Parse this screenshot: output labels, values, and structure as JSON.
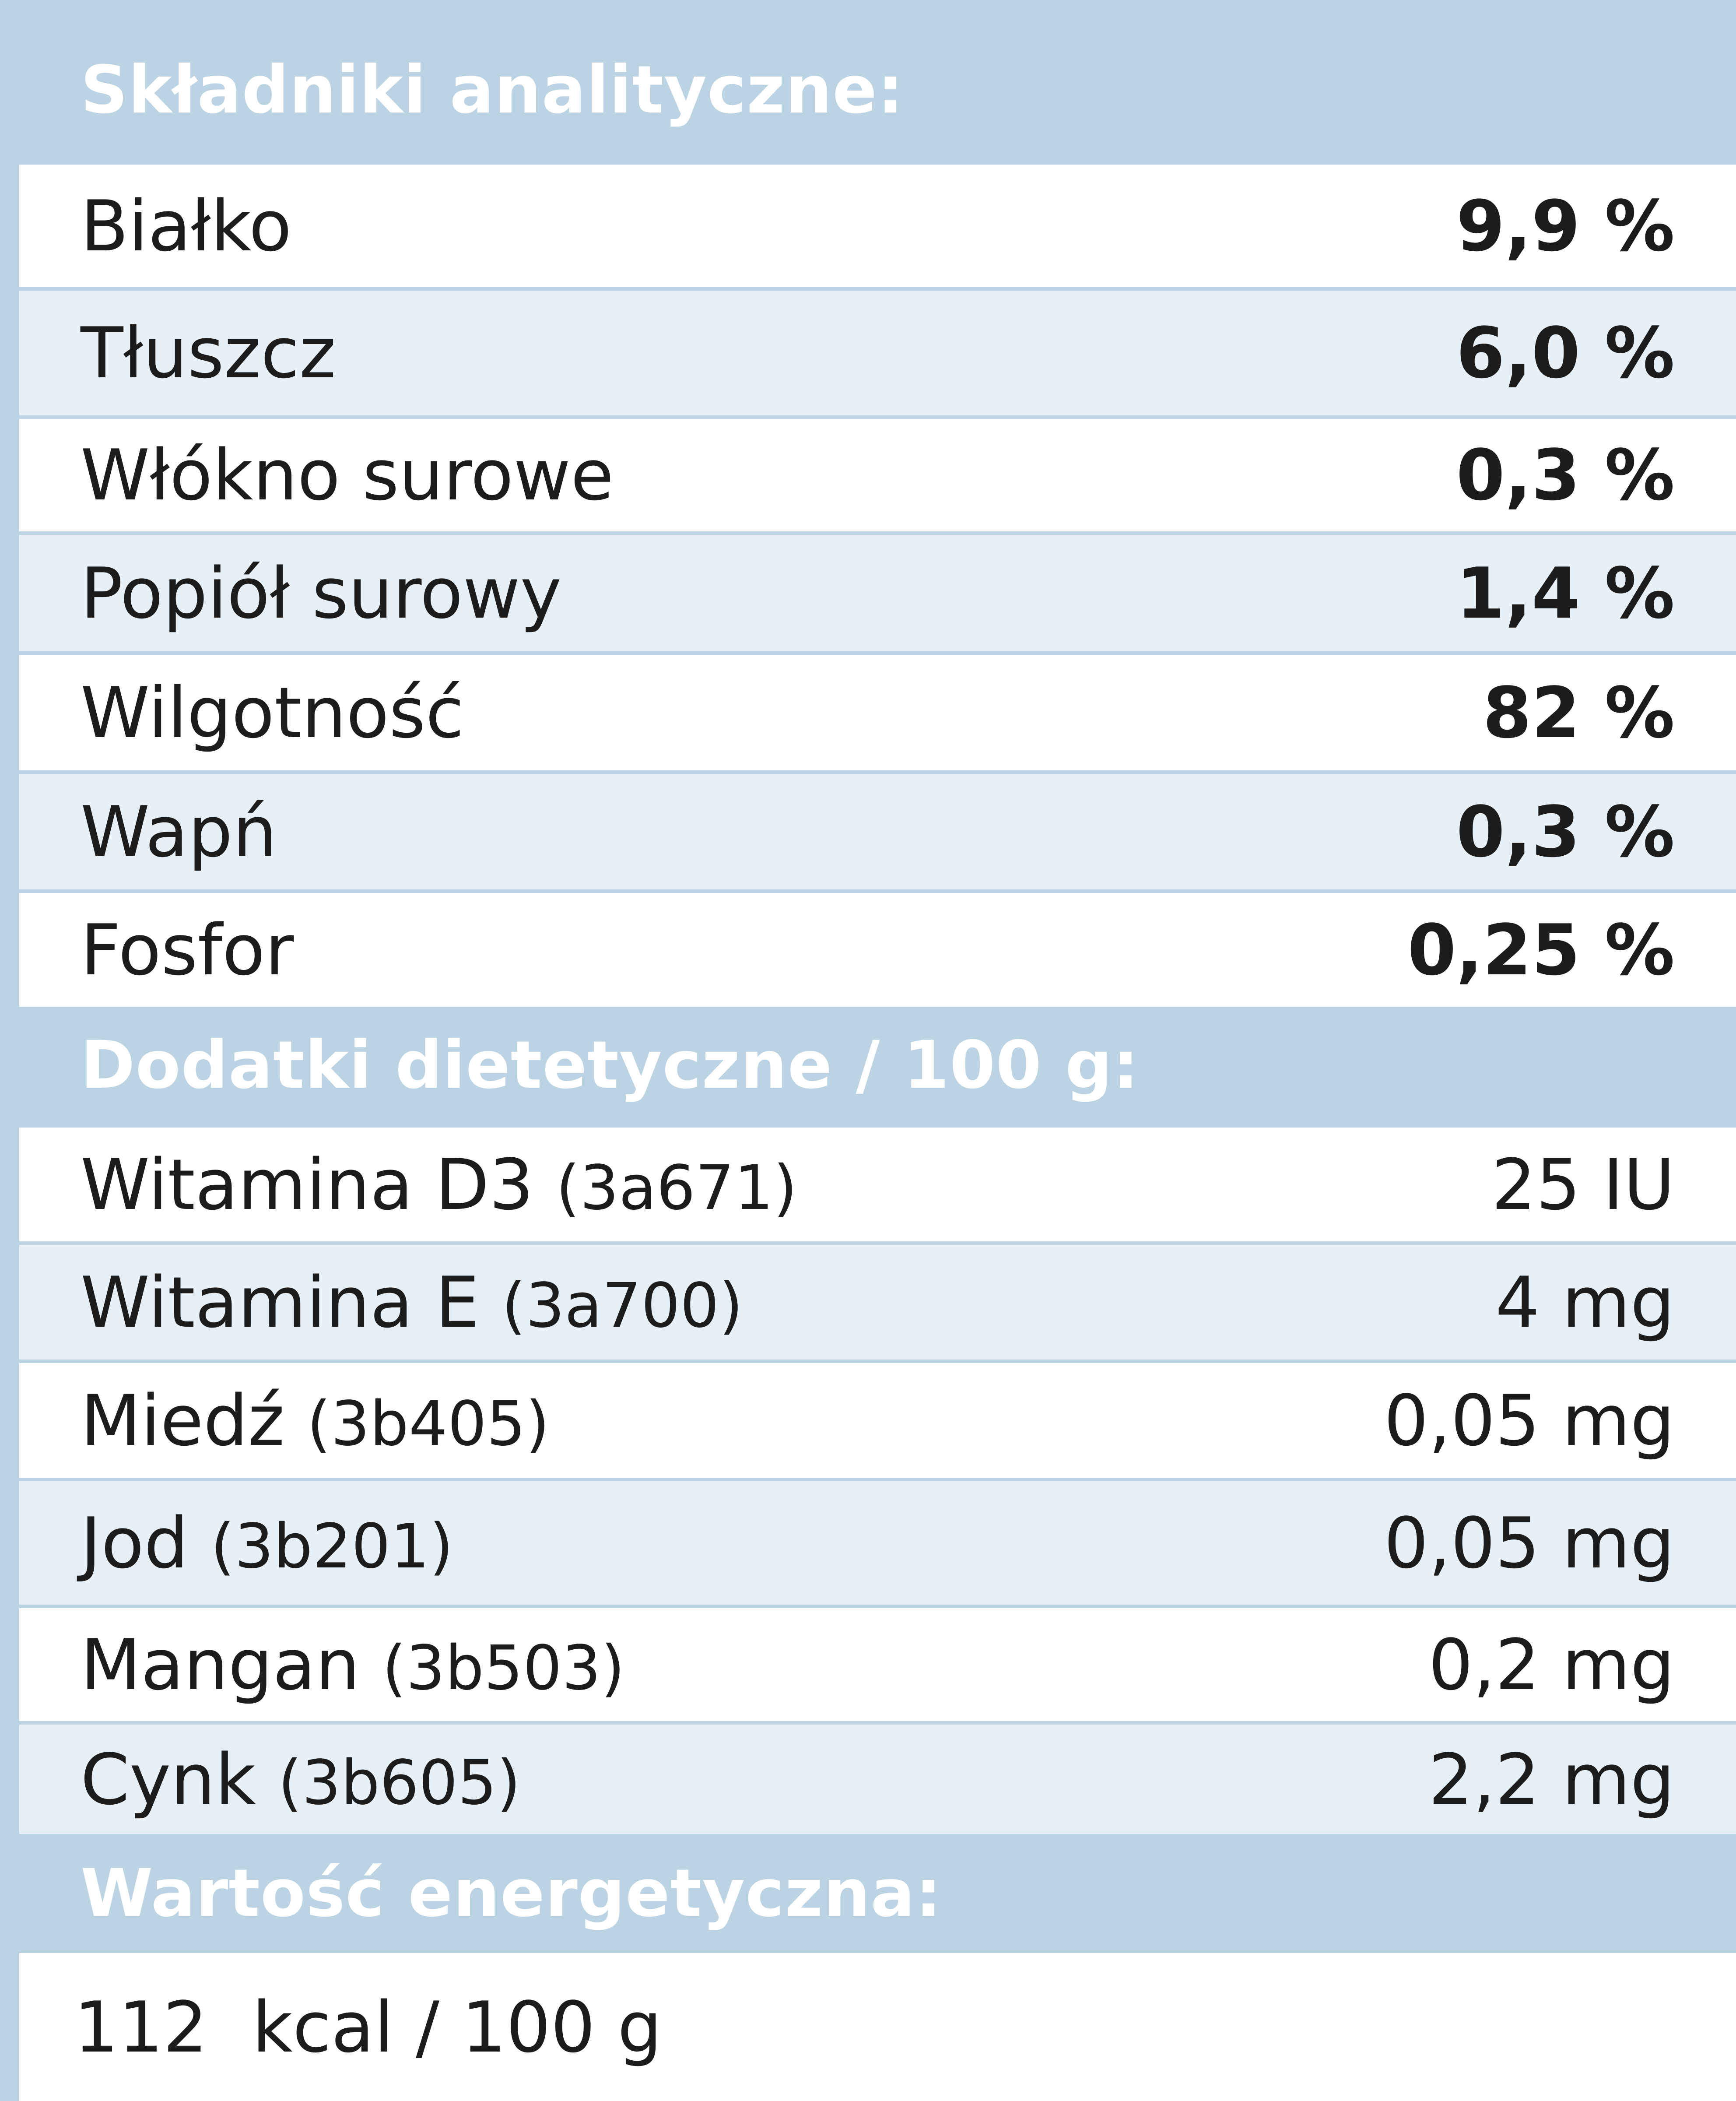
{
  "sections": {
    "analytical": {
      "header": "Składniki analityczne:",
      "rows": [
        {
          "label": "Białko",
          "value": "9,9 %"
        },
        {
          "label": "Tłuszcz",
          "value": "6,0 %"
        },
        {
          "label": "Włókno surowe",
          "value": "0,3 %"
        },
        {
          "label": "Popiół surowy",
          "value": "1,4 %"
        },
        {
          "label": "Wilgotność",
          "value": "82 %"
        },
        {
          "label": "Wapń",
          "value": "0,3 %"
        },
        {
          "label": "Fosfor",
          "value": "0,25 %"
        }
      ]
    },
    "additives": {
      "header": "Dodatki dietetyczne / 100 g:",
      "rows": [
        {
          "label": "Witamina D3",
          "code": "(3a671)",
          "value": "25 IU"
        },
        {
          "label": "Witamina E",
          "code": "(3a700)",
          "value": "4 mg"
        },
        {
          "label": "Miedź",
          "code": "(3b405)",
          "value": "0,05 mg"
        },
        {
          "label": "Jod",
          "code": "(3b201)",
          "value": "0,05 mg"
        },
        {
          "label": "Mangan",
          "code": "(3b503)",
          "value": "0,2 mg"
        },
        {
          "label": "Cynk",
          "code": "(3b605)",
          "value": "2,2 mg"
        }
      ]
    },
    "energy": {
      "header": "Wartość energetyczna:",
      "value": "112  kcal / 100 g"
    }
  }
}
